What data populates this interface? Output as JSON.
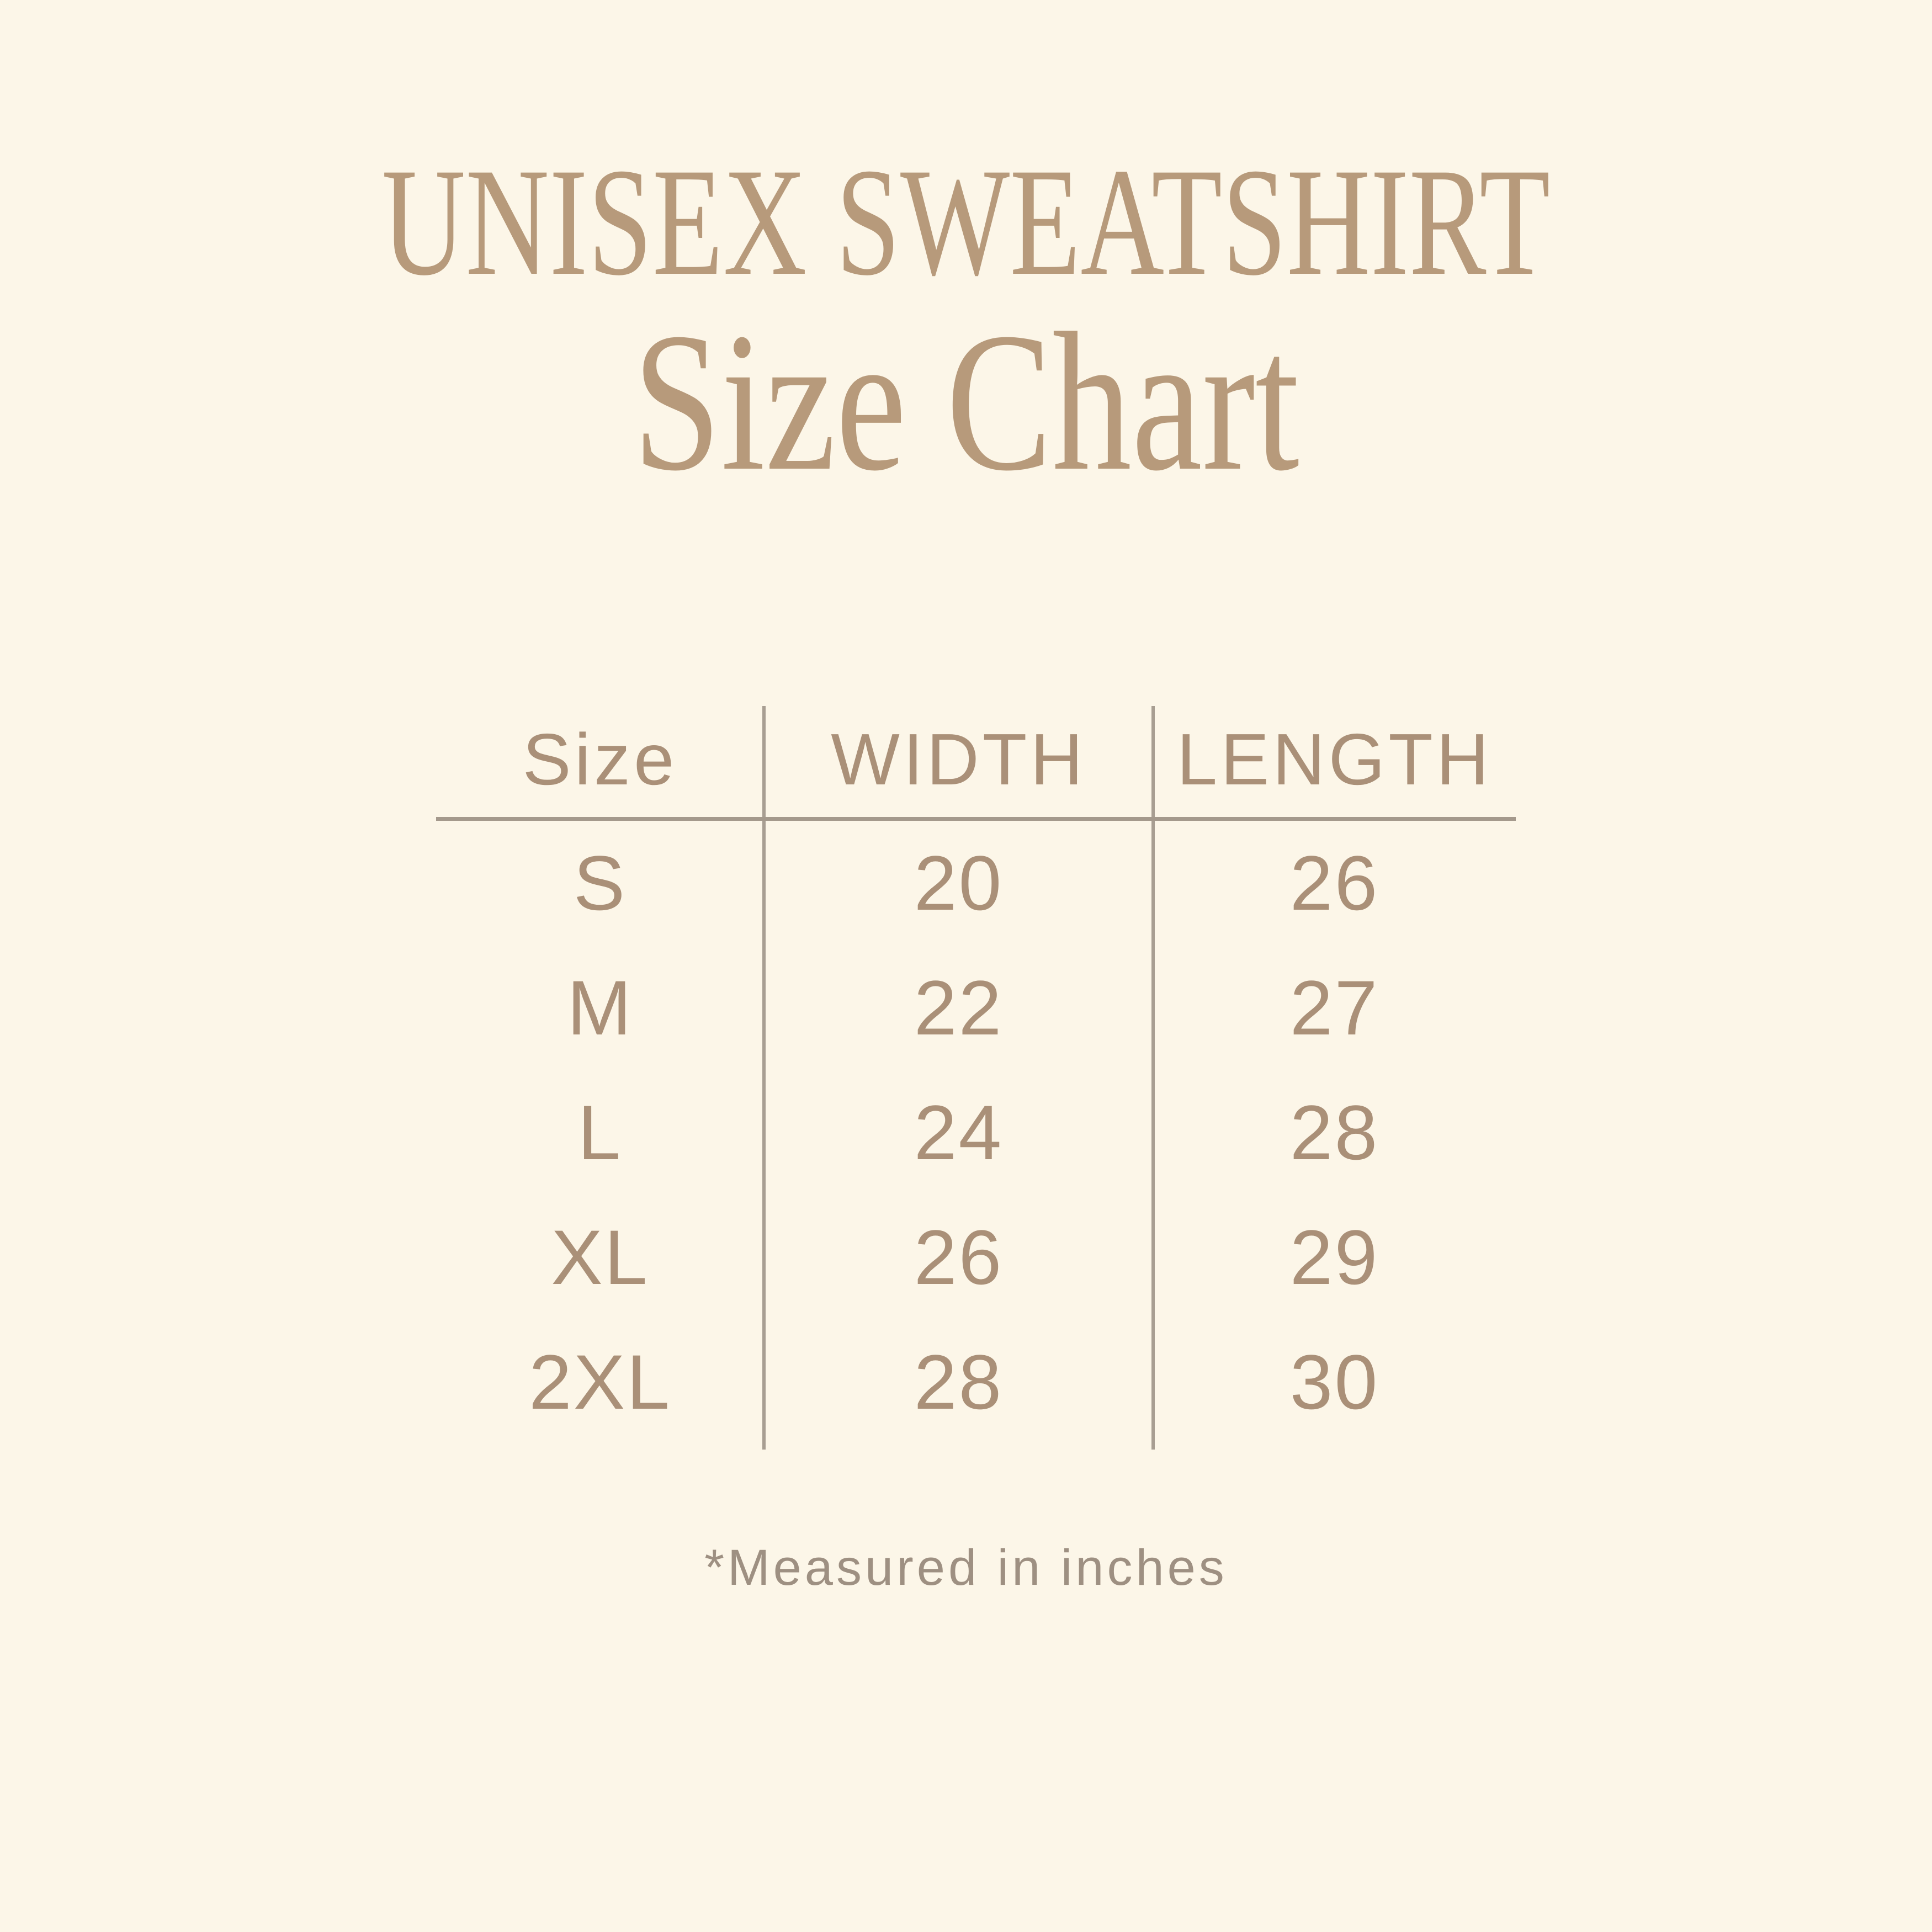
{
  "page": {
    "title": "UNISEX SWEATSHIRT",
    "subtitle": "Size Chart",
    "footnote": "*Measured in inches"
  },
  "colors": {
    "background": "#fcf6e8",
    "heading": "#b79a7b",
    "table_text": "#aa9078",
    "header_rule": "#a4998c",
    "column_divider": "#a89e92",
    "footnote": "#9e9082"
  },
  "chart_data": {
    "type": "table",
    "title": "UNISEX SWEATSHIRT",
    "subtitle": "Size Chart",
    "columns": [
      "Size",
      "WIDTH",
      "LENGTH"
    ],
    "rows": [
      {
        "size": "S",
        "width": 20,
        "length": 26
      },
      {
        "size": "M",
        "width": 22,
        "length": 27
      },
      {
        "size": "L",
        "width": 24,
        "length": 28
      },
      {
        "size": "XL",
        "width": 26,
        "length": 29
      },
      {
        "size": "2XL",
        "width": 28,
        "length": 30
      }
    ],
    "units": "inches",
    "footnote": "*Measured in inches",
    "layout_hints": {
      "grid": "off",
      "column_dividers": "vertical lines between all 3 columns",
      "header_separator": "single horizontal rule under header row"
    }
  }
}
